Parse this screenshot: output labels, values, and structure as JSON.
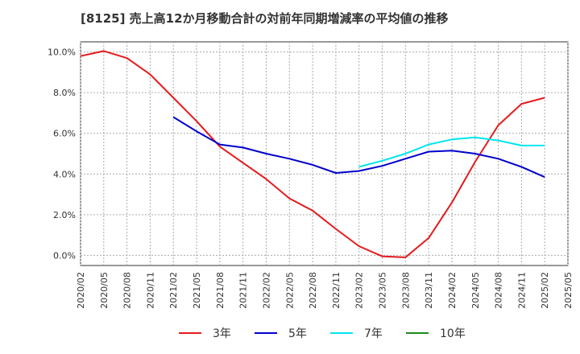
{
  "chart_data": {
    "type": "line",
    "title": "[8125]  売上高12か月移動合計の対前年同期増減率の平均値の推移",
    "xlabel": "",
    "ylabel": "",
    "x": [
      "2020/02",
      "2020/05",
      "2020/08",
      "2020/11",
      "2021/02",
      "2021/05",
      "2021/08",
      "2021/11",
      "2022/02",
      "2022/05",
      "2022/08",
      "2022/11",
      "2023/02",
      "2023/05",
      "2023/08",
      "2023/11",
      "2024/02",
      "2024/05",
      "2024/08",
      "2024/11",
      "2025/02",
      "2025/05"
    ],
    "ylim": [
      -0.5,
      10.5
    ],
    "yticks": [
      0.0,
      2.0,
      4.0,
      6.0,
      8.0,
      10.0
    ],
    "ytick_labels": [
      "0.0%",
      "2.0%",
      "4.0%",
      "6.0%",
      "8.0%",
      "10.0%"
    ],
    "grid": true,
    "legend_position": "bottom",
    "series": [
      {
        "name": "3年",
        "color": "#e41a1c",
        "values": [
          9.8,
          10.05,
          9.7,
          8.9,
          7.75,
          6.6,
          5.35,
          4.55,
          3.75,
          2.8,
          2.2,
          1.3,
          0.45,
          -0.05,
          -0.1,
          0.85,
          2.6,
          4.6,
          6.4,
          7.45,
          7.75,
          null
        ]
      },
      {
        "name": "5年",
        "color": "#0000cc",
        "values": [
          null,
          null,
          null,
          null,
          6.8,
          6.1,
          5.45,
          5.3,
          5.0,
          4.75,
          4.45,
          4.05,
          4.15,
          4.4,
          4.75,
          5.1,
          5.15,
          5.0,
          4.75,
          4.35,
          3.85,
          null
        ]
      },
      {
        "name": "7年",
        "color": "#00e5ee",
        "values": [
          null,
          null,
          null,
          null,
          null,
          null,
          null,
          null,
          null,
          null,
          null,
          null,
          4.35,
          4.65,
          5.0,
          5.45,
          5.7,
          5.8,
          5.65,
          5.4,
          5.4,
          null
        ]
      },
      {
        "name": "10年",
        "color": "#1a8c1a",
        "values": [
          null,
          null,
          null,
          null,
          null,
          null,
          null,
          null,
          null,
          null,
          null,
          null,
          null,
          null,
          null,
          null,
          null,
          null,
          null,
          null,
          null,
          null
        ]
      }
    ]
  }
}
